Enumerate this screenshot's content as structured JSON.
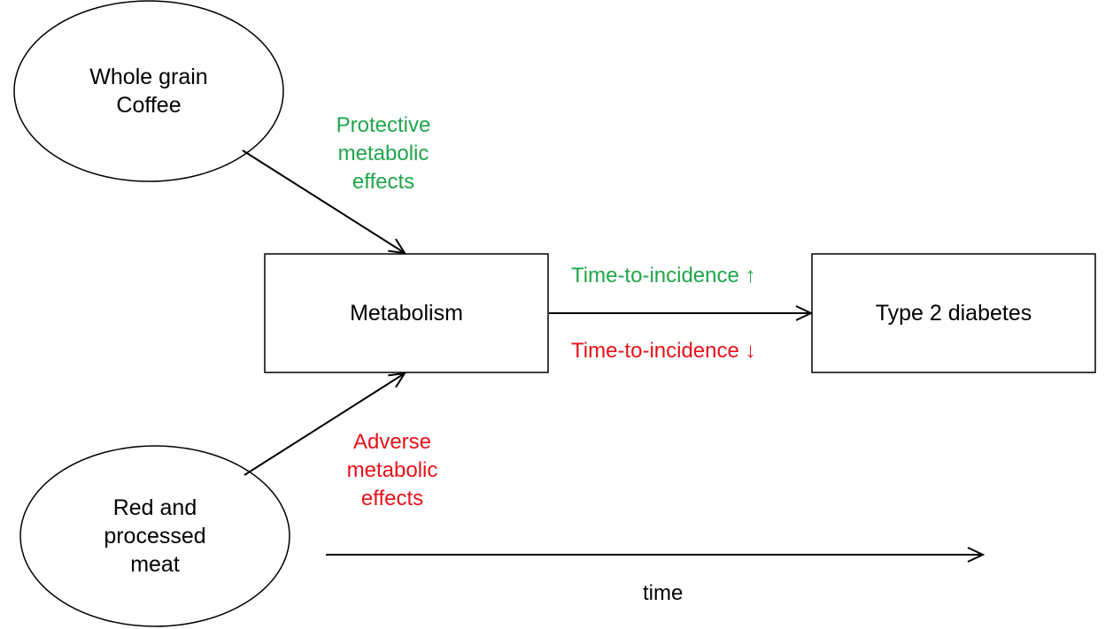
{
  "nodes": {
    "whole_grain_coffee": "Whole grain\nCoffee",
    "red_processed_meat": "Red and\nprocessed\nmeat",
    "metabolism": "Metabolism",
    "type2_diabetes": "Type 2 diabetes"
  },
  "edges": {
    "protective": "Protective\nmetabolic\neffects",
    "adverse": "Adverse\nmetabolic\neffects",
    "incidence_up": "Time-to-incidence ↑",
    "incidence_down": "Time-to-incidence ↓"
  },
  "axis": {
    "time": "time"
  },
  "colors": {
    "protective": "#1fa64a",
    "adverse": "#e8111a",
    "stroke": "#000000"
  }
}
